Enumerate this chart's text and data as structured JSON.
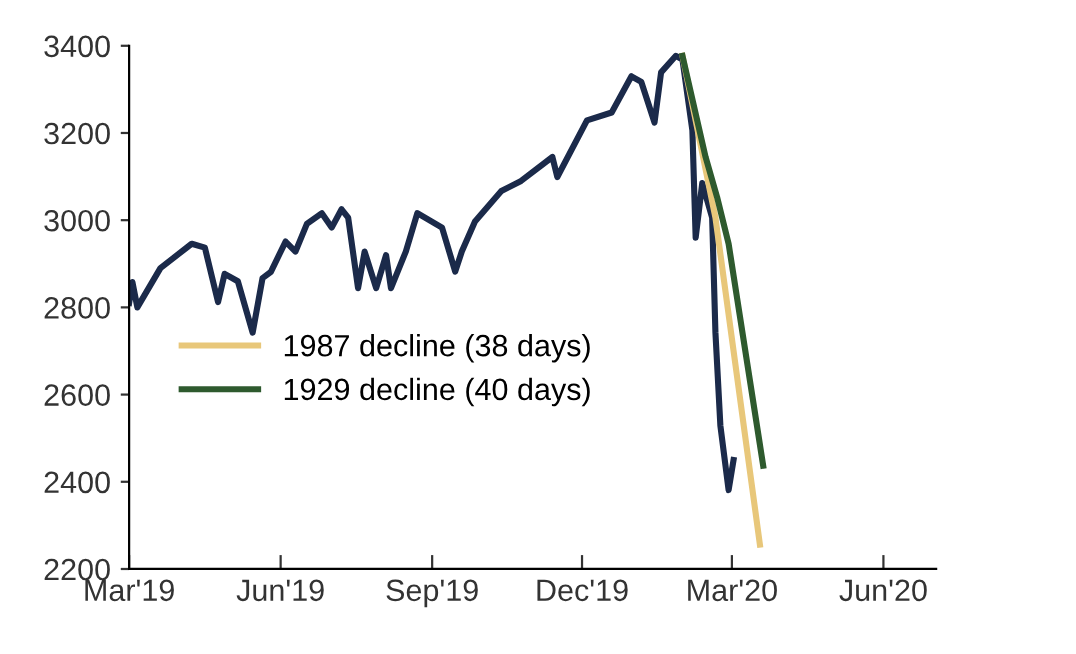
{
  "chart_data": {
    "type": "line",
    "xlim": [
      "2019-03-01",
      "2020-07-03"
    ],
    "ylim": [
      2200,
      3400
    ],
    "xticks": [
      {
        "value": "2019-03-01",
        "label": "Mar'19"
      },
      {
        "value": "2019-06-01",
        "label": "Jun'19"
      },
      {
        "value": "2019-09-01",
        "label": "Sep'19"
      },
      {
        "value": "2019-12-01",
        "label": "Dec'19"
      },
      {
        "value": "2020-03-01",
        "label": "Mar'20"
      },
      {
        "value": "2020-06-01",
        "label": "Jun'20"
      }
    ],
    "yticks": [
      2200,
      2400,
      2600,
      2800,
      3000,
      3200,
      3400
    ],
    "grid": false,
    "legend": "left",
    "marker": "none",
    "line_style": "solid",
    "series": [
      {
        "color": "#1b2a4a",
        "x": [
          "2019-03-01",
          "2019-03-03",
          "2019-03-06",
          "2019-03-20",
          "2019-04-08",
          "2019-04-16",
          "2019-04-24",
          "2019-04-28",
          "2019-05-06",
          "2019-05-15",
          "2019-05-21",
          "2019-05-26",
          "2019-06-04",
          "2019-06-10",
          "2019-06-17",
          "2019-06-26",
          "2019-07-02",
          "2019-07-08",
          "2019-07-12",
          "2019-07-18",
          "2019-07-22",
          "2019-07-29",
          "2019-08-04",
          "2019-08-07",
          "2019-08-16",
          "2019-08-23",
          "2019-09-07",
          "2019-09-15",
          "2019-09-19",
          "2019-09-27",
          "2019-10-13",
          "2019-10-25",
          "2019-11-13",
          "2019-11-16",
          "2019-12-04",
          "2019-12-19",
          "2019-12-31",
          "2020-01-06",
          "2020-01-14",
          "2020-01-18",
          "2020-01-27",
          "2020-01-31",
          "2020-02-06",
          "2020-02-08",
          "2020-02-12",
          "2020-02-18",
          "2020-02-20",
          "2020-02-23",
          "2020-02-28",
          "2020-03-02"
        ],
        "values": [
          2810,
          2858,
          2800,
          2890,
          2946,
          2937,
          2812,
          2877,
          2860,
          2742,
          2867,
          2881,
          2951,
          2928,
          2992,
          3016,
          2983,
          3025,
          3006,
          2844,
          2928,
          2844,
          2920,
          2844,
          2928,
          3016,
          2983,
          2882,
          2928,
          2997,
          3067,
          3090,
          3145,
          3099,
          3229,
          3247,
          3330,
          3317,
          3224,
          3339,
          3377,
          3368,
          3206,
          2960,
          3085,
          3006,
          2742,
          2529,
          2381,
          2450
        ]
      },
      {
        "name": "1987 decline (38 days)",
        "color": "#e8c77a",
        "x": [
          "2020-01-31",
          "2020-02-20",
          "2020-03-18"
        ],
        "values": [
          3377,
          3006,
          2256
        ]
      },
      {
        "name": "1929 decline (40 days)",
        "color": "#2e5a2e",
        "x": [
          "2020-01-31",
          "2020-02-14",
          "2020-02-21",
          "2020-02-28",
          "2020-03-20"
        ],
        "values": [
          3377,
          3145,
          3053,
          2946,
          2437
        ]
      }
    ]
  }
}
